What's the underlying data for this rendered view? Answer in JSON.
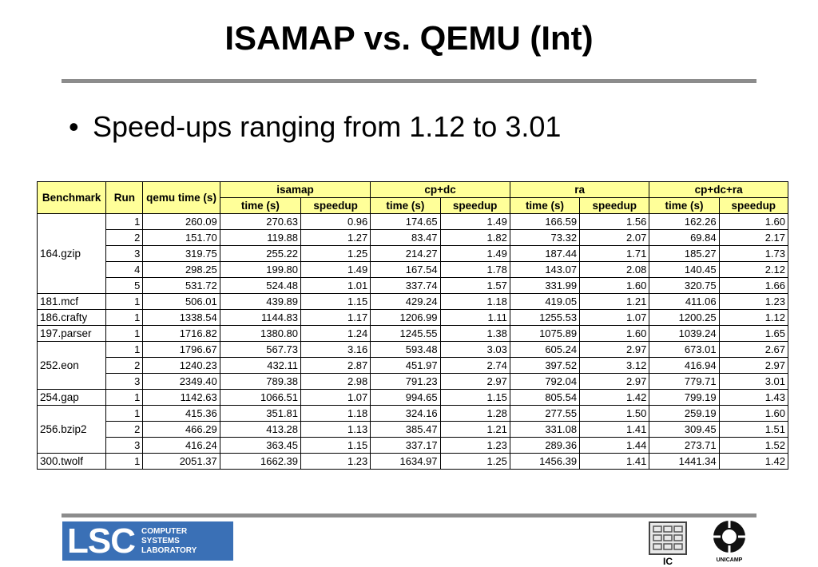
{
  "slide": {
    "title": "ISAMAP vs. QEMU (Int)",
    "bullet_marker": "•",
    "bullet": "Speed-ups ranging from 1.12 to 3.01"
  },
  "table": {
    "headers": {
      "benchmark": "Benchmark",
      "run": "Run",
      "qemu": "qemu time (s)",
      "groups": [
        "isamap",
        "cp+dc",
        "ra",
        "cp+dc+ra"
      ],
      "sub_time": "time (s)",
      "sub_speedup": "speedup"
    },
    "rows": [
      {
        "bench": "164.gzip",
        "span": 5,
        "run": "1",
        "qemu": "260.09",
        "vals": [
          "270.63",
          "0.96",
          "174.65",
          "1.49",
          "166.59",
          "1.56",
          "162.26",
          "1.60"
        ]
      },
      {
        "bench": "",
        "span": 0,
        "run": "2",
        "qemu": "151.70",
        "vals": [
          "119.88",
          "1.27",
          "83.47",
          "1.82",
          "73.32",
          "2.07",
          "69.84",
          "2.17"
        ]
      },
      {
        "bench": "",
        "span": 0,
        "run": "3",
        "qemu": "319.75",
        "vals": [
          "255.22",
          "1.25",
          "214.27",
          "1.49",
          "187.44",
          "1.71",
          "185.27",
          "1.73"
        ]
      },
      {
        "bench": "",
        "span": 0,
        "run": "4",
        "qemu": "298.25",
        "vals": [
          "199.80",
          "1.49",
          "167.54",
          "1.78",
          "143.07",
          "2.08",
          "140.45",
          "2.12"
        ]
      },
      {
        "bench": "",
        "span": 0,
        "run": "5",
        "qemu": "531.72",
        "vals": [
          "524.48",
          "1.01",
          "337.74",
          "1.57",
          "331.99",
          "1.60",
          "320.75",
          "1.66"
        ]
      },
      {
        "bench": "181.mcf",
        "span": 1,
        "run": "1",
        "qemu": "506.01",
        "vals": [
          "439.89",
          "1.15",
          "429.24",
          "1.18",
          "419.05",
          "1.21",
          "411.06",
          "1.23"
        ]
      },
      {
        "bench": "186.crafty",
        "span": 1,
        "run": "1",
        "qemu": "1338.54",
        "vals": [
          "1144.83",
          "1.17",
          "1206.99",
          "1.11",
          "1255.53",
          "1.07",
          "1200.25",
          "1.12"
        ]
      },
      {
        "bench": "197.parser",
        "span": 1,
        "run": "1",
        "qemu": "1716.82",
        "vals": [
          "1380.80",
          "1.24",
          "1245.55",
          "1.38",
          "1075.89",
          "1.60",
          "1039.24",
          "1.65"
        ]
      },
      {
        "bench": "252.eon",
        "span": 3,
        "run": "1",
        "qemu": "1796.67",
        "vals": [
          "567.73",
          "3.16",
          "593.48",
          "3.03",
          "605.24",
          "2.97",
          "673.01",
          "2.67"
        ]
      },
      {
        "bench": "",
        "span": 0,
        "run": "2",
        "qemu": "1240.23",
        "vals": [
          "432.11",
          "2.87",
          "451.97",
          "2.74",
          "397.52",
          "3.12",
          "416.94",
          "2.97"
        ]
      },
      {
        "bench": "",
        "span": 0,
        "run": "3",
        "qemu": "2349.40",
        "vals": [
          "789.38",
          "2.98",
          "791.23",
          "2.97",
          "792.04",
          "2.97",
          "779.71",
          "3.01"
        ]
      },
      {
        "bench": "254.gap",
        "span": 1,
        "run": "1",
        "qemu": "1142.63",
        "vals": [
          "1066.51",
          "1.07",
          "994.65",
          "1.15",
          "805.54",
          "1.42",
          "799.19",
          "1.43"
        ]
      },
      {
        "bench": "256.bzip2",
        "span": 3,
        "run": "1",
        "qemu": "415.36",
        "vals": [
          "351.81",
          "1.18",
          "324.16",
          "1.28",
          "277.55",
          "1.50",
          "259.19",
          "1.60"
        ]
      },
      {
        "bench": "",
        "span": 0,
        "run": "2",
        "qemu": "466.29",
        "vals": [
          "413.28",
          "1.13",
          "385.47",
          "1.21",
          "331.08",
          "1.41",
          "309.45",
          "1.51"
        ]
      },
      {
        "bench": "",
        "span": 0,
        "run": "3",
        "qemu": "416.24",
        "vals": [
          "363.45",
          "1.15",
          "337.17",
          "1.23",
          "289.36",
          "1.44",
          "273.71",
          "1.52"
        ]
      },
      {
        "bench": "300.twolf",
        "span": 1,
        "run": "1",
        "qemu": "2051.37",
        "vals": [
          "1662.39",
          "1.23",
          "1634.97",
          "1.25",
          "1456.39",
          "1.41",
          "1441.34",
          "1.42"
        ]
      }
    ]
  },
  "footer": {
    "lsc_big": "LSC",
    "lsc_lines": [
      "COMPUTER",
      "SYSTEMS",
      "LABORATORY"
    ],
    "ic_label": "IC",
    "unicamp_label": "UNICAMP",
    "lsc_color": "#3a70b6"
  },
  "colors": {
    "header_fill": "#ffff99",
    "rule": "#8c8c8c"
  }
}
